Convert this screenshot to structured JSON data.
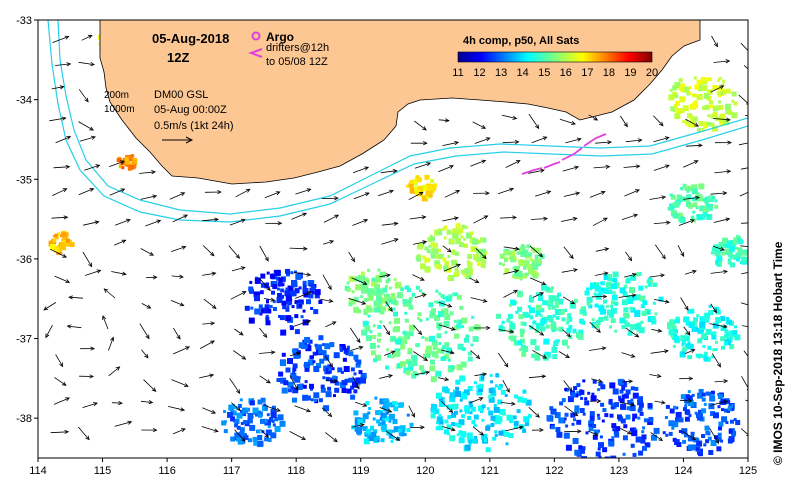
{
  "map": {
    "date_label": "05-Aug-2018",
    "time_label": "12Z",
    "argo_label": "Argo",
    "drifters_label": "drifters@12h",
    "drifters_to_label": "to 05/08 12Z",
    "contour_200_label": "200m",
    "contour_1000_label": "1000m",
    "sla_label": "DM00 GSL",
    "sla_time_label": "05-Aug 00:00Z",
    "vector_scale_label": "0.5m/s (1kt 24h)",
    "colorbar_title": "4h comp, p50, All Sats",
    "colorbar_ticks": [
      "11",
      "12",
      "13",
      "14",
      "15",
      "16",
      "17",
      "18",
      "19",
      "20"
    ],
    "colorbar_range": [
      11,
      20
    ],
    "credit": "© IMOS 10-Sep-2018 13:18 Hobart Time",
    "lon_ticks": [
      "114",
      "115",
      "116",
      "117",
      "118",
      "119",
      "120",
      "121",
      "122",
      "123",
      "124",
      "125"
    ],
    "lat_ticks": [
      "-33",
      "-34",
      "-35",
      "-36",
      "-37",
      "-38"
    ],
    "lon_range": [
      114,
      125
    ],
    "lat_range": [
      -38.5,
      -33
    ],
    "colors": {
      "land": "#fdc794",
      "isobath": "#26d0e8",
      "argo": "#e040e0",
      "drifter": "#e040e0",
      "arrow": "#000000"
    }
  }
}
